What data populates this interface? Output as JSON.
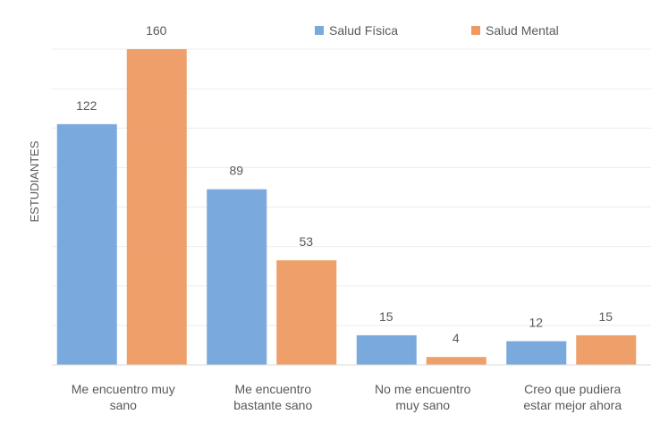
{
  "chart_data": {
    "type": "bar",
    "ylabel": "ESTUDIANTES",
    "xlabel": "",
    "categories": [
      [
        "Me encuentro muy",
        "sano"
      ],
      [
        "Me encuentro",
        "bastante sano"
      ],
      [
        "No me encuentro",
        "muy sano"
      ],
      [
        "Creo que pudiera",
        "estar mejor ahora"
      ]
    ],
    "series": [
      {
        "name": "Salud Física",
        "values": [
          122,
          89,
          15,
          12
        ],
        "color": "#7AA9DE"
      },
      {
        "name": "Salud Mental",
        "values": [
          160,
          53,
          4,
          15
        ],
        "color": "#EE9A62"
      }
    ],
    "ylim": [
      0,
      160
    ],
    "grid": true,
    "legend_position": "top-right",
    "data_labels": true
  }
}
